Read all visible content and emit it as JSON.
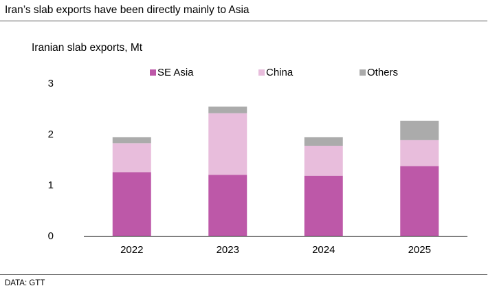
{
  "headline": "Iran’s slab exports have been directly mainly to Asia",
  "source": "DATA: GTT",
  "colors": {
    "se_asia": "#bd58a8",
    "china": "#e8bddc",
    "others": "#ababab"
  },
  "chart_data": {
    "type": "bar",
    "stacked": true,
    "title": "Iranian slab exports, Mt",
    "xlabel": "",
    "ylabel": "",
    "categories": [
      "2022",
      "2023",
      "2024",
      "2025"
    ],
    "series": [
      {
        "name": "SE Asia",
        "values": [
          1.25,
          1.2,
          1.18,
          1.37
        ]
      },
      {
        "name": "China",
        "values": [
          0.57,
          1.21,
          0.59,
          0.51
        ]
      },
      {
        "name": "Others",
        "values": [
          0.12,
          0.13,
          0.17,
          0.38
        ]
      }
    ],
    "ylim": [
      0,
      3
    ],
    "yticks": [
      "0",
      "1",
      "2",
      "3"
    ],
    "legend_position": "top",
    "grid": false
  }
}
